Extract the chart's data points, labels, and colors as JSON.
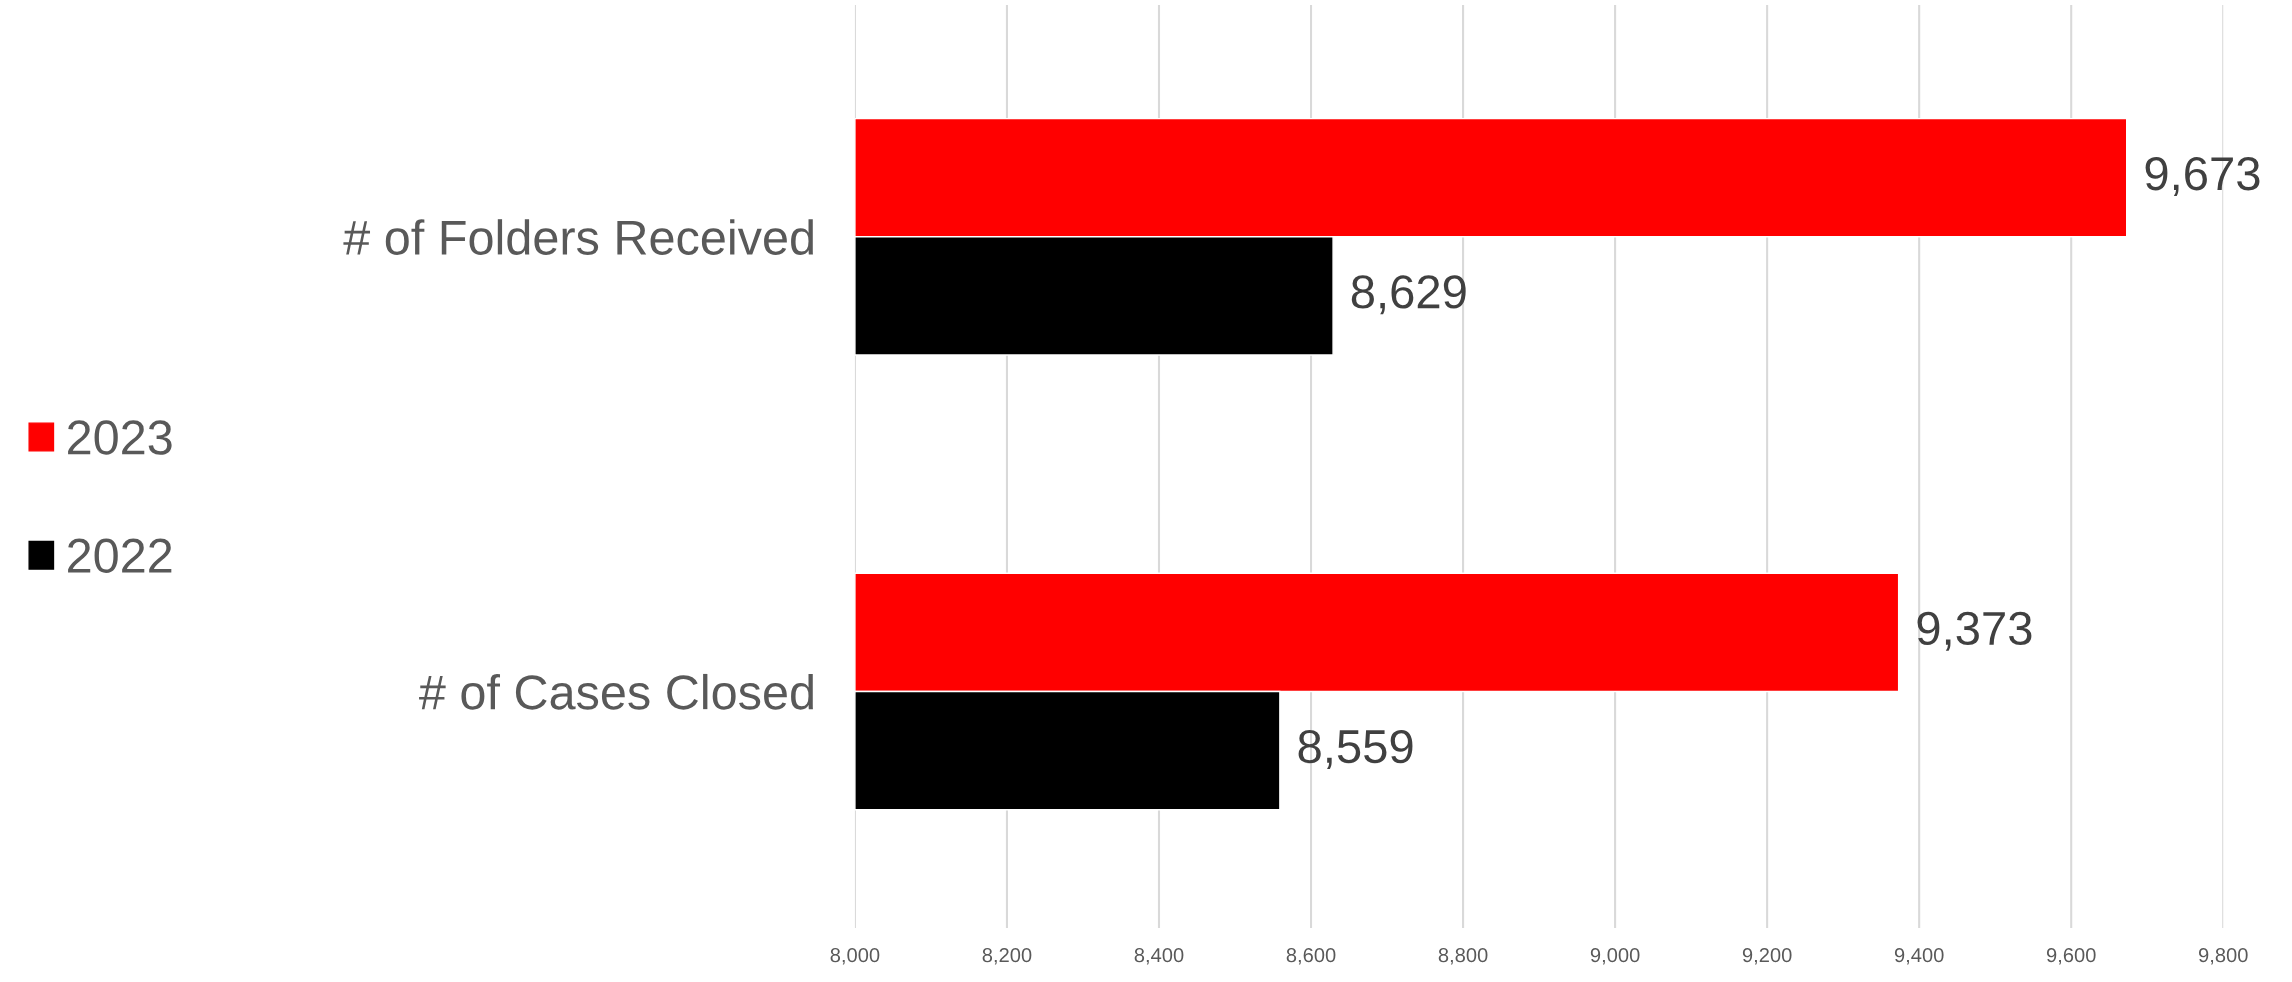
{
  "chart_data": {
    "type": "bar",
    "orientation": "horizontal",
    "categories": [
      "# of Folders Received",
      "# of Cases Closed"
    ],
    "series": [
      {
        "name": "2023",
        "color": "#ff0000",
        "values": [
          9673,
          9373
        ],
        "value_labels": [
          "9,673",
          "9,373"
        ]
      },
      {
        "name": "2022",
        "color": "#000000",
        "values": [
          8629,
          8559
        ],
        "value_labels": [
          "8,629",
          "8,559"
        ]
      }
    ],
    "xlim": [
      8000,
      9800
    ],
    "xticks": [
      {
        "value": 8000,
        "label": "8,000"
      },
      {
        "value": 8200,
        "label": "8,200"
      },
      {
        "value": 8400,
        "label": "8,400"
      },
      {
        "value": 8600,
        "label": "8,600"
      },
      {
        "value": 8800,
        "label": "8,800"
      },
      {
        "value": 9000,
        "label": "9,000"
      },
      {
        "value": 9200,
        "label": "9,200"
      },
      {
        "value": 9400,
        "label": "9,400"
      },
      {
        "value": 9600,
        "label": "9,600"
      },
      {
        "value": 9800,
        "label": "9,800"
      }
    ],
    "grid": "x",
    "legend": "left"
  }
}
